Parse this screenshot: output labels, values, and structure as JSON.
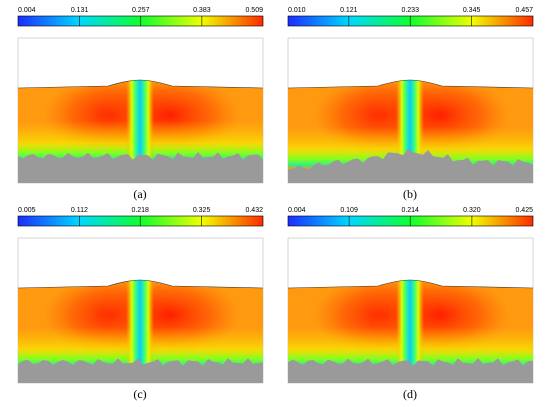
{
  "panels": [
    {
      "label": "(a)",
      "colorbar_ticks": [
        0.004,
        0.131,
        0.257,
        0.383,
        0.509
      ]
    },
    {
      "label": "(b)",
      "colorbar_ticks": [
        {
          "value": 0.01,
          "label": "0.010"
        },
        0.121,
        0.233,
        0.345,
        0.457
      ]
    },
    {
      "label": "(c)",
      "colorbar_ticks": [
        0.005,
        0.112,
        0.218,
        0.325,
        0.432
      ]
    },
    {
      "label": "(d)",
      "colorbar_ticks": [
        0.004,
        0.109,
        0.214,
        {
          "value": 0.32,
          "label": "0.320"
        },
        0.425
      ]
    }
  ]
}
